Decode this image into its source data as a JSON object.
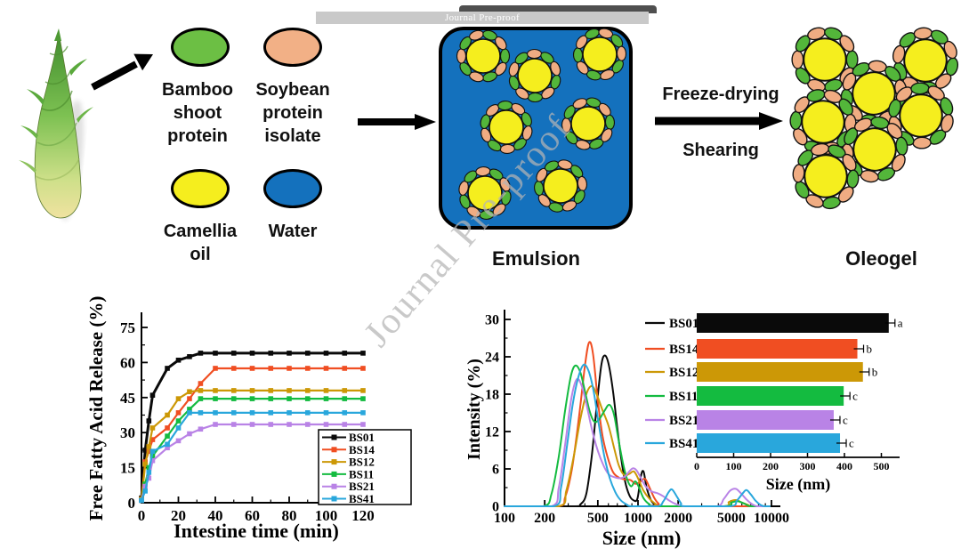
{
  "banner": {
    "text": "Journal Pre-proof"
  },
  "watermark": {
    "text": "Journal Pre-proof"
  },
  "schematic": {
    "colors": {
      "oil": "#f5ee1e",
      "protein_green": "#53b63a",
      "protein_salmon": "#f0ac82",
      "water": "#1471bd"
    },
    "ingredients": [
      {
        "label": "Bamboo shoot protein",
        "color": "#6cbf44"
      },
      {
        "label": "Soybean protein isolate",
        "color": "#f2b086"
      },
      {
        "label": "Camellia oil",
        "color": "#f5ee1e"
      },
      {
        "label": "Water",
        "color": "#1471bd"
      }
    ],
    "process": {
      "top": "Freeze-drying",
      "bottom": "Shearing"
    },
    "emulsion_label": "Emulsion",
    "oleogel_label": "Oleogel"
  },
  "chart_data": [
    {
      "type": "line",
      "title": "",
      "xlabel": "Intestine time (min)",
      "ylabel": "Free Fatty Acid Release (%)",
      "xlim": [
        0,
        125
      ],
      "ylim": [
        0,
        80
      ],
      "xticks": [
        0,
        20,
        40,
        60,
        80,
        100,
        120
      ],
      "yticks": [
        0,
        15,
        30,
        45,
        60,
        75
      ],
      "legend_position": "lower right",
      "marker": "square",
      "x": [
        0,
        2,
        4,
        6,
        14,
        20,
        26,
        32,
        40,
        50,
        60,
        70,
        80,
        90,
        100,
        110,
        120
      ],
      "series": [
        {
          "name": "BS01",
          "color": "#0a0a0a",
          "values": [
            2,
            22.5,
            35,
            46,
            57.5,
            61,
            62.5,
            64,
            64,
            64,
            64,
            64,
            64,
            64,
            64,
            64,
            64
          ]
        },
        {
          "name": "BS14",
          "color": "#f04e22",
          "values": [
            1.5,
            17.5,
            22,
            27,
            32,
            38.5,
            44.5,
            51,
            57.5,
            57.5,
            57.5,
            57.5,
            57.5,
            57.5,
            57.5,
            57.5,
            57.5
          ]
        },
        {
          "name": "BS12",
          "color": "#cc9806",
          "values": [
            1.5,
            16.5,
            24,
            32,
            37.5,
            44.5,
            47.5,
            48,
            48,
            48,
            48,
            48,
            48,
            48,
            48,
            48,
            48
          ]
        },
        {
          "name": "BS11",
          "color": "#14bb40",
          "values": [
            1,
            8,
            15,
            20,
            28.5,
            35,
            40,
            44.5,
            44.5,
            44.5,
            44.5,
            44.5,
            44.5,
            44.5,
            44.5,
            44.5,
            44.5
          ]
        },
        {
          "name": "BS21",
          "color": "#b983e6",
          "values": [
            1,
            7,
            10.5,
            18,
            23.5,
            26.5,
            29.5,
            31.5,
            33.5,
            33.5,
            33.5,
            33.5,
            33.5,
            33.5,
            33.5,
            33.5,
            33.5
          ]
        },
        {
          "name": "BS41",
          "color": "#29a7dc",
          "values": [
            1,
            5,
            13,
            22,
            25,
            32,
            38.5,
            38.5,
            38.5,
            38.5,
            38.5,
            38.5,
            38.5,
            38.5,
            38.5,
            38.5,
            38.5
          ]
        }
      ]
    },
    {
      "type": "line",
      "title": "",
      "xlabel": "Size (nm)",
      "ylabel": "Intensity (%)",
      "xscale": "log",
      "xlim": [
        100,
        10000
      ],
      "ylim": [
        0,
        30
      ],
      "xticks": [
        100,
        200,
        500,
        1000,
        2000,
        5000,
        10000
      ],
      "yticks": [
        0,
        6,
        12,
        18,
        24,
        30
      ],
      "series": [
        {
          "name": "BS01",
          "color": "#0a0a0a",
          "points": [
            [
              330,
              0
            ],
            [
              370,
              0.3
            ],
            [
              410,
              2
            ],
            [
              450,
              8
            ],
            [
              490,
              16
            ],
            [
              530,
              22.5
            ],
            [
              560,
              24.2
            ],
            [
              600,
              23
            ],
            [
              650,
              18.5
            ],
            [
              700,
              12.5
            ],
            [
              750,
              7.5
            ],
            [
              800,
              4
            ],
            [
              860,
              1.8
            ],
            [
              920,
              1
            ],
            [
              990,
              1.2
            ],
            [
              1050,
              4.8
            ],
            [
              1100,
              5.6
            ],
            [
              1160,
              3
            ],
            [
              1250,
              1
            ],
            [
              1350,
              0.2
            ],
            [
              1450,
              0
            ]
          ]
        },
        {
          "name": "BS14",
          "color": "#f04e22",
          "points": [
            [
              250,
              0
            ],
            [
              285,
              1.5
            ],
            [
              320,
              6
            ],
            [
              360,
              14
            ],
            [
              400,
              22.5
            ],
            [
              430,
              26.3
            ],
            [
              460,
              24.5
            ],
            [
              500,
              17
            ],
            [
              540,
              11.5
            ],
            [
              590,
              8
            ],
            [
              650,
              5.5
            ],
            [
              720,
              4.6
            ],
            [
              800,
              4.3
            ],
            [
              880,
              4.2
            ],
            [
              960,
              3.6
            ],
            [
              1050,
              4
            ],
            [
              1130,
              4.4
            ],
            [
              1220,
              3
            ],
            [
              1320,
              1.4
            ],
            [
              1430,
              0.4
            ],
            [
              1550,
              0
            ]
          ]
        },
        {
          "name": "BS12",
          "color": "#cc9806",
          "points": [
            [
              255,
              0
            ],
            [
              290,
              2.5
            ],
            [
              330,
              8
            ],
            [
              370,
              14
            ],
            [
              410,
              18
            ],
            [
              450,
              19.3
            ],
            [
              490,
              18
            ],
            [
              540,
              15.5
            ],
            [
              600,
              13
            ],
            [
              660,
              9.5
            ],
            [
              720,
              6.5
            ],
            [
              790,
              5
            ],
            [
              860,
              5.2
            ],
            [
              930,
              5.6
            ],
            [
              1000,
              4.5
            ],
            [
              1100,
              2.5
            ],
            [
              1220,
              1.2
            ],
            [
              1350,
              0.4
            ],
            [
              1500,
              0
            ],
            [
              4300,
              0
            ],
            [
              4800,
              0.7
            ],
            [
              5400,
              1
            ],
            [
              6000,
              0.6
            ],
            [
              6700,
              0.2
            ],
            [
              7200,
              0
            ]
          ]
        },
        {
          "name": "BS11",
          "color": "#14bb40",
          "points": [
            [
              195,
              0
            ],
            [
              225,
              2
            ],
            [
              255,
              8
            ],
            [
              285,
              15.5
            ],
            [
              315,
              21
            ],
            [
              340,
              22.6
            ],
            [
              370,
              21.5
            ],
            [
              400,
              18.5
            ],
            [
              435,
              15.2
            ],
            [
              470,
              13.6
            ],
            [
              510,
              13.9
            ],
            [
              560,
              15.3
            ],
            [
              610,
              16.3
            ],
            [
              660,
              14.8
            ],
            [
              710,
              11
            ],
            [
              770,
              7
            ],
            [
              830,
              4.3
            ],
            [
              890,
              3.2
            ],
            [
              950,
              4
            ],
            [
              1010,
              3.2
            ],
            [
              1100,
              1.3
            ],
            [
              1220,
              0.3
            ],
            [
              1350,
              0
            ],
            [
              4400,
              0
            ],
            [
              5000,
              0.6
            ],
            [
              5600,
              0.8
            ],
            [
              6300,
              0.4
            ],
            [
              7000,
              0
            ]
          ]
        },
        {
          "name": "BS21",
          "color": "#b983e6",
          "points": [
            [
              225,
              0
            ],
            [
              255,
              3
            ],
            [
              285,
              10
            ],
            [
              315,
              17
            ],
            [
              345,
              20.3
            ],
            [
              375,
              19.6
            ],
            [
              410,
              16.5
            ],
            [
              450,
              12.5
            ],
            [
              495,
              9.2
            ],
            [
              545,
              6.8
            ],
            [
              600,
              5.2
            ],
            [
              660,
              4.7
            ],
            [
              730,
              4.5
            ],
            [
              800,
              4.8
            ],
            [
              860,
              5.6
            ],
            [
              920,
              6.1
            ],
            [
              980,
              5.7
            ],
            [
              1060,
              4.4
            ],
            [
              1150,
              3.1
            ],
            [
              1260,
              2.4
            ],
            [
              1400,
              2.1
            ],
            [
              1550,
              1.6
            ],
            [
              1720,
              0.9
            ],
            [
              1900,
              0.4
            ],
            [
              2100,
              0.1
            ],
            [
              2300,
              0
            ],
            [
              3900,
              0
            ],
            [
              4400,
              1.2
            ],
            [
              4900,
              2.5
            ],
            [
              5400,
              2.8
            ],
            [
              5900,
              2.1
            ],
            [
              6500,
              1.1
            ],
            [
              7100,
              0.4
            ],
            [
              7800,
              0
            ]
          ]
        },
        {
          "name": "BS41",
          "color": "#29a7dc",
          "points": [
            [
              235,
              0
            ],
            [
              265,
              3
            ],
            [
              295,
              10
            ],
            [
              325,
              16.5
            ],
            [
              355,
              20.5
            ],
            [
              390,
              22.7
            ],
            [
              425,
              21.8
            ],
            [
              465,
              18.5
            ],
            [
              510,
              13
            ],
            [
              560,
              8
            ],
            [
              615,
              4.5
            ],
            [
              675,
              2.3
            ],
            [
              740,
              1
            ],
            [
              820,
              0.3
            ],
            [
              900,
              0
            ],
            [
              1400,
              0
            ],
            [
              1550,
              0.8
            ],
            [
              1700,
              2.3
            ],
            [
              1800,
              2.7
            ],
            [
              1950,
              1.6
            ],
            [
              2100,
              0.5
            ],
            [
              2250,
              0
            ],
            [
              4900,
              0
            ],
            [
              5500,
              0.9
            ],
            [
              6100,
              2.1
            ],
            [
              6500,
              2.6
            ],
            [
              7000,
              1.9
            ],
            [
              7600,
              0.9
            ],
            [
              8300,
              0.2
            ],
            [
              8900,
              0
            ]
          ]
        }
      ]
    },
    {
      "type": "bar",
      "orientation": "horizontal",
      "xlabel": "Size (nm)",
      "xlim": [
        0,
        550
      ],
      "xticks": [
        0,
        100,
        200,
        300,
        400,
        500
      ],
      "categories": [
        "BS01",
        "BS14",
        "BS12",
        "BS11",
        "BS21",
        "BS41"
      ],
      "values": [
        520,
        435,
        450,
        398,
        371,
        388
      ],
      "sig_letters": [
        "a",
        "b",
        "b",
        "c",
        "c",
        "c"
      ],
      "colors": [
        "#0a0a0a",
        "#f04e22",
        "#cc9806",
        "#14bb40",
        "#b983e6",
        "#29a7dc"
      ]
    }
  ]
}
